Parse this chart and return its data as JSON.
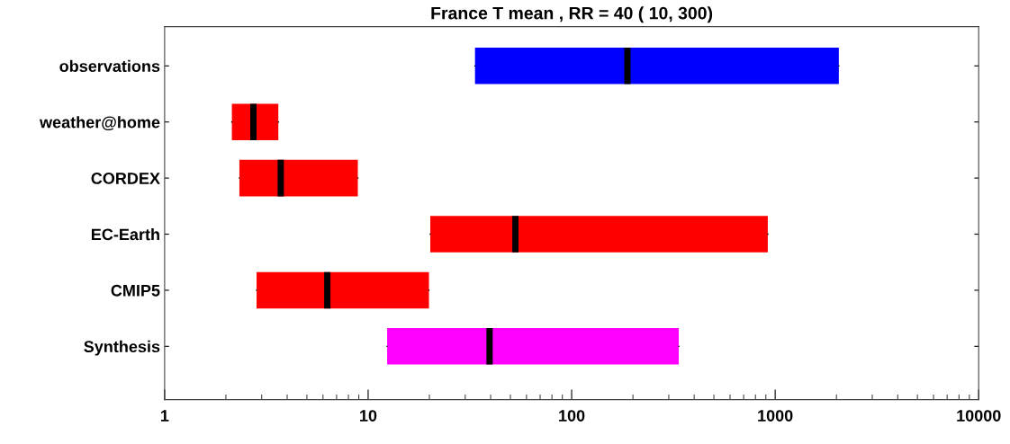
{
  "chart_data": {
    "type": "box",
    "title": "France T mean , RR = 40 ( 10, 300)",
    "orientation": "horizontal",
    "log": "x",
    "categories": [
      "observations",
      "weather@home",
      "CORDEX",
      "EC-Earth",
      "CMIP5",
      "Synthesis"
    ],
    "boxes": [
      {
        "low": 33.5,
        "q1": 33.5,
        "median": 188,
        "q3": 2055,
        "high": 2055
      },
      {
        "low": 2.14,
        "q1": 2.14,
        "median": 2.73,
        "q3": 3.62,
        "high": 3.62
      },
      {
        "low": 2.33,
        "q1": 2.33,
        "median": 3.72,
        "q3": 8.9,
        "high": 8.9
      },
      {
        "low": 20.2,
        "q1": 20.2,
        "median": 52.9,
        "q3": 920,
        "high": 920
      },
      {
        "low": 2.83,
        "q1": 2.83,
        "median": 6.3,
        "q3": 19.9,
        "high": 19.9
      },
      {
        "low": 12.4,
        "q1": 12.4,
        "median": 39.5,
        "q3": 336,
        "high": 336
      }
    ],
    "colors": [
      "#0000ff",
      "#ff0000",
      "#ff0000",
      "#ff0000",
      "#ff0000",
      "#ff00ff"
    ],
    "xlim": [
      1,
      10000
    ],
    "xticks": [
      1,
      10,
      100,
      1000,
      10000
    ],
    "grid": false,
    "legend": false
  }
}
